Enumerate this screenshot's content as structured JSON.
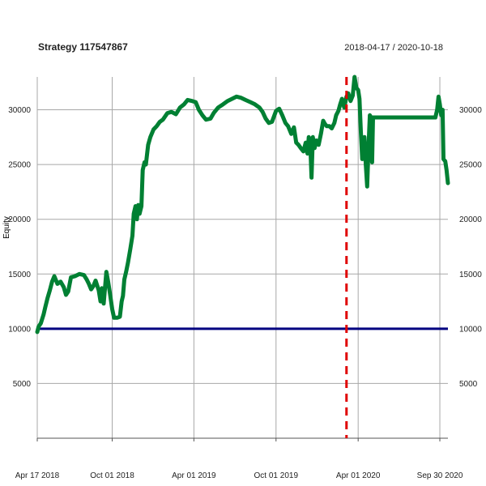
{
  "chart_data": {
    "type": "line",
    "title": "Strategy 117547867",
    "date_range": "2018-04-17 / 2020-10-18",
    "ylabel": "Equity",
    "xlim": [
      "2018-04-17",
      "2020-10-18"
    ],
    "ylim": [
      0,
      33000
    ],
    "yticks": [
      5000,
      10000,
      15000,
      20000,
      25000,
      30000
    ],
    "ytick_labels": [
      "5000",
      "10000",
      "15000",
      "20000",
      "25000",
      "30000"
    ],
    "xticks": [
      "2018-04-17",
      "2018-10-01",
      "2019-04-01",
      "2019-10-01",
      "2020-04-01",
      "2020-09-30"
    ],
    "xtick_labels": [
      "Apr 17 2018",
      "Oct 01 2018",
      "Apr 01 2019",
      "Oct 01 2019",
      "Apr 01 2020",
      "Sep 30 2020"
    ],
    "grid": true,
    "reference_line": {
      "y": 10000,
      "color": "#000080"
    },
    "vertical_marker": {
      "x": "2020-03-06",
      "color": "#e00000",
      "style": "dashed"
    },
    "series": [
      {
        "color": "#008033",
        "points": [
          [
            "2018-04-17",
            9700
          ],
          [
            "2018-04-20",
            10200
          ],
          [
            "2018-04-25",
            10500
          ],
          [
            "2018-05-01",
            11300
          ],
          [
            "2018-05-05",
            12000
          ],
          [
            "2018-05-10",
            12800
          ],
          [
            "2018-05-15",
            13500
          ],
          [
            "2018-05-20",
            14300
          ],
          [
            "2018-05-25",
            14800
          ],
          [
            "2018-06-01",
            14100
          ],
          [
            "2018-06-08",
            14300
          ],
          [
            "2018-06-15",
            13800
          ],
          [
            "2018-06-20",
            13100
          ],
          [
            "2018-06-25",
            13400
          ],
          [
            "2018-07-01",
            14700
          ],
          [
            "2018-07-10",
            14800
          ],
          [
            "2018-07-20",
            15000
          ],
          [
            "2018-07-30",
            14900
          ],
          [
            "2018-08-05",
            14500
          ],
          [
            "2018-08-10",
            14100
          ],
          [
            "2018-08-15",
            13600
          ],
          [
            "2018-08-20",
            13900
          ],
          [
            "2018-08-25",
            14400
          ],
          [
            "2018-09-01",
            13500
          ],
          [
            "2018-09-05",
            12500
          ],
          [
            "2018-09-08",
            13700
          ],
          [
            "2018-09-12",
            12300
          ],
          [
            "2018-09-18",
            15200
          ],
          [
            "2018-09-22",
            14300
          ],
          [
            "2018-09-26",
            13200
          ],
          [
            "2018-10-01",
            11800
          ],
          [
            "2018-10-05",
            11000
          ],
          [
            "2018-10-12",
            11000
          ],
          [
            "2018-10-18",
            11100
          ],
          [
            "2018-10-22",
            12500
          ],
          [
            "2018-10-25",
            13000
          ],
          [
            "2018-10-28",
            14500
          ],
          [
            "2018-11-01",
            15200
          ],
          [
            "2018-11-05",
            16000
          ],
          [
            "2018-11-10",
            17200
          ],
          [
            "2018-11-15",
            18500
          ],
          [
            "2018-11-18",
            20500
          ],
          [
            "2018-11-22",
            21200
          ],
          [
            "2018-11-25",
            20000
          ],
          [
            "2018-11-28",
            21300
          ],
          [
            "2018-12-01",
            20500
          ],
          [
            "2018-12-05",
            21200
          ],
          [
            "2018-12-08",
            24500
          ],
          [
            "2018-12-12",
            25200
          ],
          [
            "2018-12-15",
            25000
          ],
          [
            "2018-12-20",
            26800
          ],
          [
            "2018-12-25",
            27500
          ],
          [
            "2019-01-01",
            28200
          ],
          [
            "2019-01-08",
            28500
          ],
          [
            "2019-01-15",
            28900
          ],
          [
            "2019-01-22",
            29100
          ],
          [
            "2019-02-01",
            29700
          ],
          [
            "2019-02-10",
            29800
          ],
          [
            "2019-02-20",
            29600
          ],
          [
            "2019-03-01",
            30200
          ],
          [
            "2019-03-10",
            30500
          ],
          [
            "2019-03-18",
            30900
          ],
          [
            "2019-03-28",
            30800
          ],
          [
            "2019-04-05",
            30700
          ],
          [
            "2019-04-12",
            30000
          ],
          [
            "2019-04-20",
            29500
          ],
          [
            "2019-04-28",
            29100
          ],
          [
            "2019-05-08",
            29200
          ],
          [
            "2019-05-15",
            29700
          ],
          [
            "2019-05-25",
            30200
          ],
          [
            "2019-06-05",
            30500
          ],
          [
            "2019-06-15",
            30800
          ],
          [
            "2019-06-25",
            31000
          ],
          [
            "2019-07-05",
            31200
          ],
          [
            "2019-07-15",
            31100
          ],
          [
            "2019-07-25",
            30900
          ],
          [
            "2019-08-05",
            30700
          ],
          [
            "2019-08-15",
            30500
          ],
          [
            "2019-08-25",
            30200
          ],
          [
            "2019-09-01",
            29800
          ],
          [
            "2019-09-08",
            29200
          ],
          [
            "2019-09-15",
            28800
          ],
          [
            "2019-09-22",
            28900
          ],
          [
            "2019-10-01",
            29900
          ],
          [
            "2019-10-08",
            30100
          ],
          [
            "2019-10-15",
            29500
          ],
          [
            "2019-10-22",
            28800
          ],
          [
            "2019-10-28",
            28500
          ],
          [
            "2019-11-04",
            27800
          ],
          [
            "2019-11-10",
            28400
          ],
          [
            "2019-11-15",
            27000
          ],
          [
            "2019-11-20",
            26800
          ],
          [
            "2019-11-25",
            26500
          ],
          [
            "2019-12-01",
            26200
          ],
          [
            "2019-12-06",
            27000
          ],
          [
            "2019-12-10",
            26000
          ],
          [
            "2019-12-13",
            27500
          ],
          [
            "2019-12-16",
            27200
          ],
          [
            "2019-12-19",
            23800
          ],
          [
            "2019-12-22",
            27500
          ],
          [
            "2019-12-26",
            26500
          ],
          [
            "2019-12-30",
            27200
          ],
          [
            "2020-01-04",
            26800
          ],
          [
            "2020-01-09",
            27800
          ],
          [
            "2020-01-14",
            29000
          ],
          [
            "2020-01-18",
            28700
          ],
          [
            "2020-01-22",
            28500
          ],
          [
            "2020-01-28",
            28500
          ],
          [
            "2020-02-02",
            28300
          ],
          [
            "2020-02-08",
            28800
          ],
          [
            "2020-02-12",
            29500
          ],
          [
            "2020-02-17",
            29900
          ],
          [
            "2020-02-21",
            30500
          ],
          [
            "2020-02-25",
            31000
          ],
          [
            "2020-03-01",
            30200
          ],
          [
            "2020-03-06",
            31200
          ],
          [
            "2020-03-10",
            31500
          ],
          [
            "2020-03-15",
            30800
          ],
          [
            "2020-03-20",
            31300
          ],
          [
            "2020-03-24",
            33000
          ],
          [
            "2020-03-28",
            32000
          ],
          [
            "2020-04-01",
            31800
          ],
          [
            "2020-04-04",
            31000
          ],
          [
            "2020-04-07",
            28000
          ],
          [
            "2020-04-10",
            25500
          ],
          [
            "2020-04-13",
            26500
          ],
          [
            "2020-04-15",
            27500
          ],
          [
            "2020-04-18",
            25000
          ],
          [
            "2020-04-21",
            23000
          ],
          [
            "2020-04-24",
            26500
          ],
          [
            "2020-04-27",
            29500
          ],
          [
            "2020-04-30",
            29300
          ],
          [
            "2020-05-02",
            25200
          ],
          [
            "2020-05-04",
            29300
          ],
          [
            "2020-06-01",
            29300
          ],
          [
            "2020-07-01",
            29300
          ],
          [
            "2020-08-01",
            29300
          ],
          [
            "2020-09-01",
            29300
          ],
          [
            "2020-09-20",
            29300
          ],
          [
            "2020-09-24",
            30000
          ],
          [
            "2020-09-27",
            31200
          ],
          [
            "2020-09-30",
            30500
          ],
          [
            "2020-10-03",
            29500
          ],
          [
            "2020-10-06",
            30000
          ],
          [
            "2020-10-08",
            25500
          ],
          [
            "2020-10-12",
            25300
          ],
          [
            "2020-10-15",
            24500
          ],
          [
            "2020-10-18",
            23300
          ]
        ]
      }
    ]
  }
}
